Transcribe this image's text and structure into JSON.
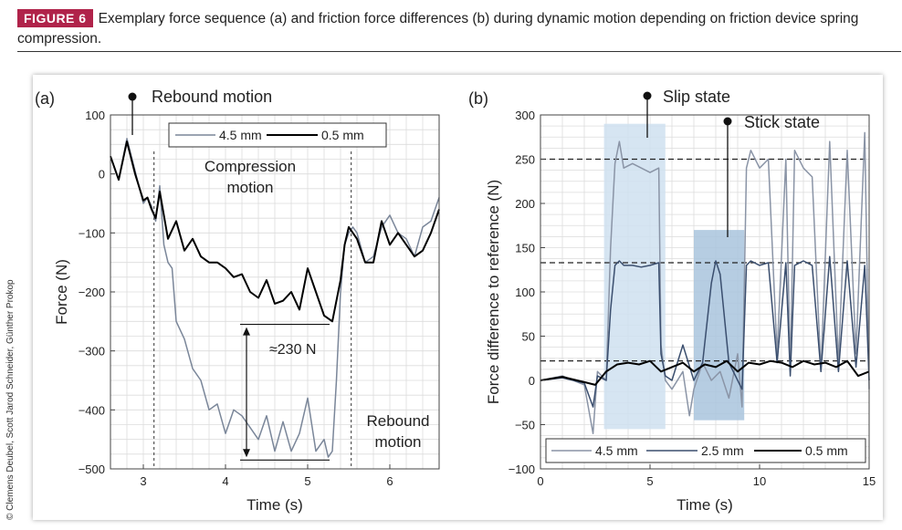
{
  "figure": {
    "badge": "FIGURE 6",
    "caption": "Exemplary force sequence (a) and friction force differences (b) during dynamic motion depending on friction device spring compression.",
    "credit": "© Clemens Deubel, Scott Jarod Schneider, Günther Prokop"
  },
  "chart_data": [
    {
      "type": "line",
      "panel_label": "(a)",
      "xlabel": "Time (s)",
      "ylabel": "Force (N)",
      "xlim": [
        2.6,
        6.6
      ],
      "ylim": [
        -500,
        100
      ],
      "xticks": [
        3,
        4,
        5,
        6
      ],
      "yticks": [
        100,
        0,
        -100,
        -200,
        -300,
        -400,
        -500
      ],
      "grid": true,
      "legend_position": "top-right",
      "series": [
        {
          "name": "4.5 mm",
          "color": "#7a8699",
          "x": [
            2.6,
            2.7,
            2.8,
            2.9,
            3.0,
            3.05,
            3.1,
            3.15,
            3.2,
            3.25,
            3.3,
            3.35,
            3.4,
            3.5,
            3.6,
            3.7,
            3.8,
            3.9,
            4.0,
            4.1,
            4.2,
            4.3,
            4.4,
            4.5,
            4.6,
            4.7,
            4.8,
            4.9,
            5.0,
            5.1,
            5.2,
            5.25,
            5.3,
            5.35,
            5.4,
            5.45,
            5.5,
            5.55,
            5.6,
            5.7,
            5.8,
            5.9,
            6.0,
            6.1,
            6.2,
            6.3,
            6.4,
            6.5,
            6.6
          ],
          "y": [
            30,
            -10,
            60,
            5,
            -50,
            -40,
            -55,
            -80,
            -20,
            -120,
            -150,
            -160,
            -250,
            -280,
            -330,
            -350,
            -400,
            -390,
            -440,
            -400,
            -410,
            -430,
            -450,
            -410,
            -470,
            -420,
            -470,
            -440,
            -380,
            -470,
            -450,
            -480,
            -470,
            -350,
            -200,
            -120,
            -100,
            -90,
            -100,
            -150,
            -140,
            -90,
            -70,
            -100,
            -110,
            -140,
            -90,
            -80,
            -40
          ]
        },
        {
          "name": "0.5 mm",
          "color": "#000000",
          "x": [
            2.6,
            2.7,
            2.8,
            2.9,
            3.0,
            3.05,
            3.1,
            3.15,
            3.2,
            3.3,
            3.4,
            3.5,
            3.6,
            3.7,
            3.8,
            3.9,
            4.0,
            4.1,
            4.2,
            4.3,
            4.4,
            4.5,
            4.6,
            4.7,
            4.8,
            4.9,
            5.0,
            5.1,
            5.2,
            5.3,
            5.4,
            5.45,
            5.5,
            5.55,
            5.6,
            5.7,
            5.8,
            5.9,
            6.0,
            6.1,
            6.2,
            6.3,
            6.4,
            6.5,
            6.6
          ],
          "y": [
            30,
            -10,
            55,
            0,
            -45,
            -40,
            -60,
            -75,
            -30,
            -110,
            -80,
            -130,
            -110,
            -140,
            -150,
            -150,
            -160,
            -175,
            -170,
            -200,
            -210,
            -180,
            -220,
            -215,
            -200,
            -230,
            -160,
            -200,
            -240,
            -250,
            -180,
            -120,
            -90,
            -100,
            -110,
            -150,
            -150,
            -80,
            -120,
            -100,
            -120,
            -140,
            -130,
            -100,
            -60
          ]
        }
      ],
      "annotations": {
        "rebound_top": "Rebound motion",
        "compression_1": "Compression",
        "compression_2": "motion",
        "rebound_bottom_1": "Rebound",
        "rebound_bottom_2": "motion",
        "difference": "≈230 N"
      },
      "vlines": [
        3.13,
        5.53
      ],
      "difference_range": [
        -255,
        -485
      ],
      "difference_x": 4.2
    },
    {
      "type": "line",
      "panel_label": "(b)",
      "xlabel": "Time (s)",
      "ylabel": "Force difference to reference (N)",
      "xlim": [
        0,
        15
      ],
      "ylim": [
        -100,
        300
      ],
      "xticks": [
        0,
        5,
        10,
        15
      ],
      "yticks": [
        300,
        250,
        200,
        150,
        100,
        50,
        0,
        -50,
        -100
      ],
      "grid": true,
      "legend_position": "bottom",
      "hlines": [
        250,
        133,
        22
      ],
      "shaded_regions": [
        {
          "label": "Slip state",
          "x": [
            2.9,
            5.7
          ],
          "y": [
            -55,
            290
          ],
          "color": "#cfe0f0"
        },
        {
          "label": "Stick state",
          "x": [
            7.0,
            9.3
          ],
          "y": [
            -45,
            170
          ],
          "color": "#a9c4dd"
        }
      ],
      "annotations": {
        "slip": "Slip state",
        "stick": "Stick state"
      },
      "series": [
        {
          "name": "4.5 mm",
          "color": "#8a94a6",
          "x": [
            0,
            1,
            2,
            2.4,
            2.6,
            3.0,
            3.2,
            3.4,
            3.6,
            3.8,
            4.2,
            4.6,
            5.0,
            5.4,
            5.5,
            5.7,
            6.0,
            6.5,
            6.8,
            7.0,
            7.4,
            7.8,
            8.2,
            8.6,
            9.0,
            9.2,
            9.4,
            9.6,
            10.0,
            10.4,
            10.8,
            11.2,
            11.4,
            11.6,
            12.0,
            12.4,
            12.8,
            13.2,
            13.6,
            14.0,
            14.4,
            14.8,
            15.0
          ],
          "y": [
            0,
            5,
            -5,
            -60,
            10,
            0,
            150,
            245,
            270,
            240,
            245,
            240,
            235,
            240,
            40,
            0,
            -10,
            10,
            -40,
            -10,
            20,
            0,
            10,
            -20,
            30,
            -30,
            240,
            260,
            240,
            250,
            30,
            250,
            10,
            260,
            240,
            230,
            10,
            270,
            20,
            260,
            30,
            280,
            -10
          ]
        },
        {
          "name": "2.5 mm",
          "color": "#3a4e6e",
          "x": [
            0,
            1,
            2,
            2.4,
            2.6,
            3.0,
            3.2,
            3.4,
            3.6,
            3.8,
            4.2,
            4.6,
            5.0,
            5.4,
            5.5,
            5.7,
            6.0,
            6.5,
            7.0,
            7.4,
            7.8,
            8.0,
            8.2,
            8.6,
            9.0,
            9.2,
            9.4,
            9.6,
            10.0,
            10.4,
            10.8,
            11.2,
            11.4,
            11.6,
            12.0,
            12.4,
            12.8,
            13.2,
            13.6,
            14.0,
            14.4,
            14.8,
            15.0
          ],
          "y": [
            0,
            3,
            -3,
            -30,
            5,
            0,
            80,
            130,
            135,
            130,
            130,
            128,
            130,
            133,
            30,
            5,
            0,
            40,
            0,
            20,
            110,
            135,
            120,
            20,
            0,
            -10,
            130,
            135,
            130,
            133,
            20,
            133,
            5,
            130,
            135,
            130,
            10,
            140,
            10,
            135,
            15,
            130,
            0
          ]
        },
        {
          "name": "0.5 mm",
          "color": "#000000",
          "x": [
            0,
            1,
            2,
            2.5,
            3.0,
            3.5,
            4.0,
            4.5,
            5.0,
            5.5,
            6.0,
            6.5,
            7.0,
            7.5,
            8.0,
            8.5,
            9.0,
            9.5,
            10.0,
            10.5,
            11.0,
            11.5,
            12.0,
            12.5,
            13.0,
            13.5,
            14.0,
            14.5,
            15.0
          ],
          "y": [
            0,
            4,
            -2,
            -5,
            10,
            18,
            20,
            18,
            22,
            10,
            15,
            20,
            10,
            18,
            15,
            22,
            10,
            20,
            18,
            22,
            20,
            15,
            22,
            18,
            20,
            15,
            22,
            5,
            10
          ]
        }
      ]
    }
  ]
}
